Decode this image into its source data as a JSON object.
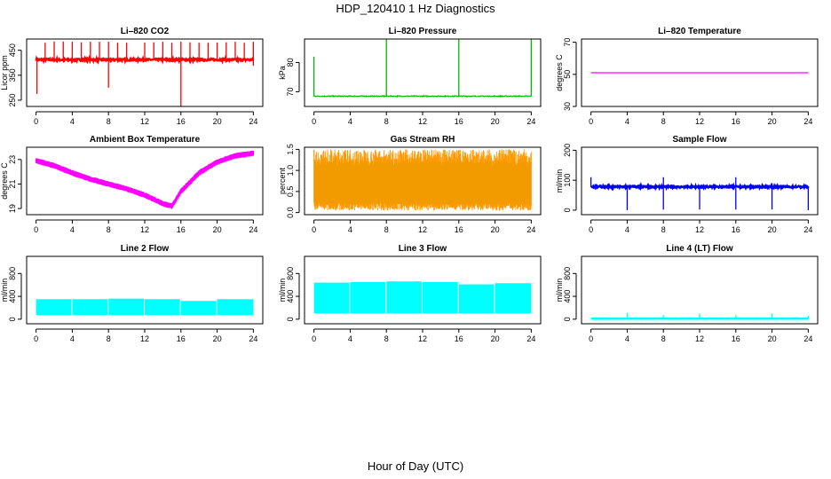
{
  "figure": {
    "title": "HDP_120410  1 Hz Diagnostics",
    "xlabel": "Hour of Day (UTC)"
  },
  "chart_data": [
    {
      "type": "line",
      "title": "Li–820 CO2",
      "ylabel": "Licor ppm",
      "xlim": [
        0,
        24
      ],
      "ylim": [
        225,
        495
      ],
      "yticks": [
        250,
        350,
        450
      ],
      "xticks": [
        0,
        4,
        8,
        12,
        16,
        20,
        24
      ],
      "color": "#ff0000",
      "baseline": 412,
      "noise": 4,
      "spikes": [
        [
          1,
          480
        ],
        [
          2,
          485
        ],
        [
          3,
          485
        ],
        [
          4,
          484
        ],
        [
          5,
          482
        ],
        [
          6,
          484
        ],
        [
          7,
          484
        ],
        [
          8,
          484
        ],
        [
          9,
          480
        ],
        [
          10,
          480
        ],
        [
          12,
          481
        ],
        [
          13,
          482
        ],
        [
          14,
          484
        ],
        [
          15,
          480
        ],
        [
          16,
          484
        ],
        [
          17,
          482
        ],
        [
          18,
          480
        ],
        [
          19,
          480
        ],
        [
          20,
          481
        ],
        [
          21,
          482
        ],
        [
          22,
          484
        ],
        [
          23,
          480
        ],
        [
          24,
          484
        ]
      ],
      "dips": [
        [
          0.1,
          275
        ],
        [
          8,
          300
        ],
        [
          16,
          225
        ],
        [
          24,
          388
        ]
      ]
    },
    {
      "type": "line",
      "title": "Li–820 Pressure",
      "ylabel": "kPa",
      "xlim": [
        0,
        24
      ],
      "ylim": [
        65,
        88
      ],
      "yticks": [
        70,
        80
      ],
      "xticks": [
        0,
        4,
        8,
        12,
        16,
        20,
        24
      ],
      "color": "#00bb00",
      "baseline": 68.5,
      "noise": 0.15,
      "spikes": [
        [
          0,
          82
        ],
        [
          8,
          88
        ],
        [
          16,
          88
        ],
        [
          24,
          88
        ]
      ],
      "dips": []
    },
    {
      "type": "line",
      "title": "Li–820 Temperature",
      "ylabel": "degrees C",
      "xlim": [
        0,
        24
      ],
      "ylim": [
        30,
        72
      ],
      "yticks": [
        30,
        50,
        70
      ],
      "xticks": [
        0,
        4,
        8,
        12,
        16,
        20,
        24
      ],
      "color": "#ff00ff",
      "baseline": 51,
      "noise": 0,
      "spikes": [],
      "dips": []
    },
    {
      "type": "line",
      "title": "Ambient Box Temperature",
      "ylabel": "degrees C",
      "xlim": [
        0,
        24
      ],
      "ylim": [
        18.5,
        24
      ],
      "yticks": [
        19,
        21,
        23
      ],
      "xticks": [
        0,
        4,
        8,
        12,
        16,
        20,
        24
      ],
      "color": "#ff00ff",
      "trend": [
        [
          0,
          22.9
        ],
        [
          2,
          22.5
        ],
        [
          4,
          21.9
        ],
        [
          6,
          21.4
        ],
        [
          8,
          21.0
        ],
        [
          10,
          20.6
        ],
        [
          12,
          20.1
        ],
        [
          14,
          19.4
        ],
        [
          15,
          19.2
        ],
        [
          16,
          20.4
        ],
        [
          18,
          21.9
        ],
        [
          20,
          22.8
        ],
        [
          22,
          23.3
        ],
        [
          24,
          23.5
        ]
      ],
      "band": 0.32,
      "spikes": [],
      "dips": []
    },
    {
      "type": "line",
      "title": "Gas Stream RH",
      "ylabel": "percent",
      "xlim": [
        0,
        24
      ],
      "ylim": [
        -0.05,
        1.55
      ],
      "yticks": [
        0.0,
        0.5,
        1.0,
        1.5
      ],
      "xticks": [
        0,
        4,
        8,
        12,
        16,
        20,
        24
      ],
      "color": "#ff9900",
      "band_low": 0.05,
      "band_high": 1.5,
      "center": 0.7,
      "spikes": [],
      "dips": []
    },
    {
      "type": "line",
      "title": "Sample Flow",
      "ylabel": "ml/min",
      "xlim": [
        0,
        24
      ],
      "ylim": [
        -15,
        210
      ],
      "yticks": [
        0,
        100,
        200
      ],
      "xticks": [
        0,
        4,
        8,
        12,
        16,
        20,
        24
      ],
      "color": "#0000ff",
      "baseline": 78,
      "noise": 3,
      "spikes": [
        [
          0,
          110
        ],
        [
          8,
          110
        ],
        [
          16,
          110
        ],
        [
          20,
          90
        ]
      ],
      "dips": [
        [
          4,
          0
        ],
        [
          8,
          2
        ],
        [
          12,
          2
        ],
        [
          16,
          2
        ],
        [
          20,
          2
        ],
        [
          24,
          0
        ]
      ]
    },
    {
      "type": "area",
      "title": "Line 2 Flow",
      "ylabel": "ml/min",
      "xlim": [
        0,
        24
      ],
      "ylim": [
        -80,
        1100
      ],
      "yticks": [
        0,
        400,
        800
      ],
      "xticks": [
        0,
        4,
        8,
        12,
        16,
        20,
        24
      ],
      "color": "#00ffff",
      "segments": [
        [
          0,
          3.9,
          70,
          350
        ],
        [
          4,
          7.9,
          70,
          350
        ],
        [
          8,
          11.9,
          70,
          360
        ],
        [
          12,
          15.9,
          70,
          350
        ],
        [
          16,
          19.9,
          70,
          320
        ],
        [
          20,
          24,
          70,
          350
        ]
      ]
    },
    {
      "type": "area",
      "title": "Line 3 Flow",
      "ylabel": "ml/min",
      "xlim": [
        0,
        24
      ],
      "ylim": [
        -80,
        1100
      ],
      "yticks": [
        0,
        400,
        800
      ],
      "xticks": [
        0,
        4,
        8,
        12,
        16,
        20,
        24
      ],
      "color": "#00ffff",
      "segments": [
        [
          0,
          3.9,
          100,
          640
        ],
        [
          4,
          7.9,
          100,
          650
        ],
        [
          8,
          11.9,
          100,
          660
        ],
        [
          12,
          15.9,
          100,
          650
        ],
        [
          16,
          19.9,
          100,
          610
        ],
        [
          20,
          24,
          100,
          630
        ]
      ]
    },
    {
      "type": "line",
      "title": "Line 4 (LT) Flow",
      "ylabel": "ml/min",
      "xlim": [
        0,
        24
      ],
      "ylim": [
        -80,
        1100
      ],
      "yticks": [
        0,
        400,
        800
      ],
      "xticks": [
        0,
        4,
        8,
        12,
        16,
        20,
        24
      ],
      "color": "#00ffff",
      "baseline": 10,
      "noise": 3,
      "spikes": [
        [
          4,
          110
        ],
        [
          8,
          70
        ],
        [
          12,
          100
        ],
        [
          16,
          70
        ],
        [
          20,
          100
        ],
        [
          24,
          60
        ]
      ],
      "dips": []
    }
  ]
}
